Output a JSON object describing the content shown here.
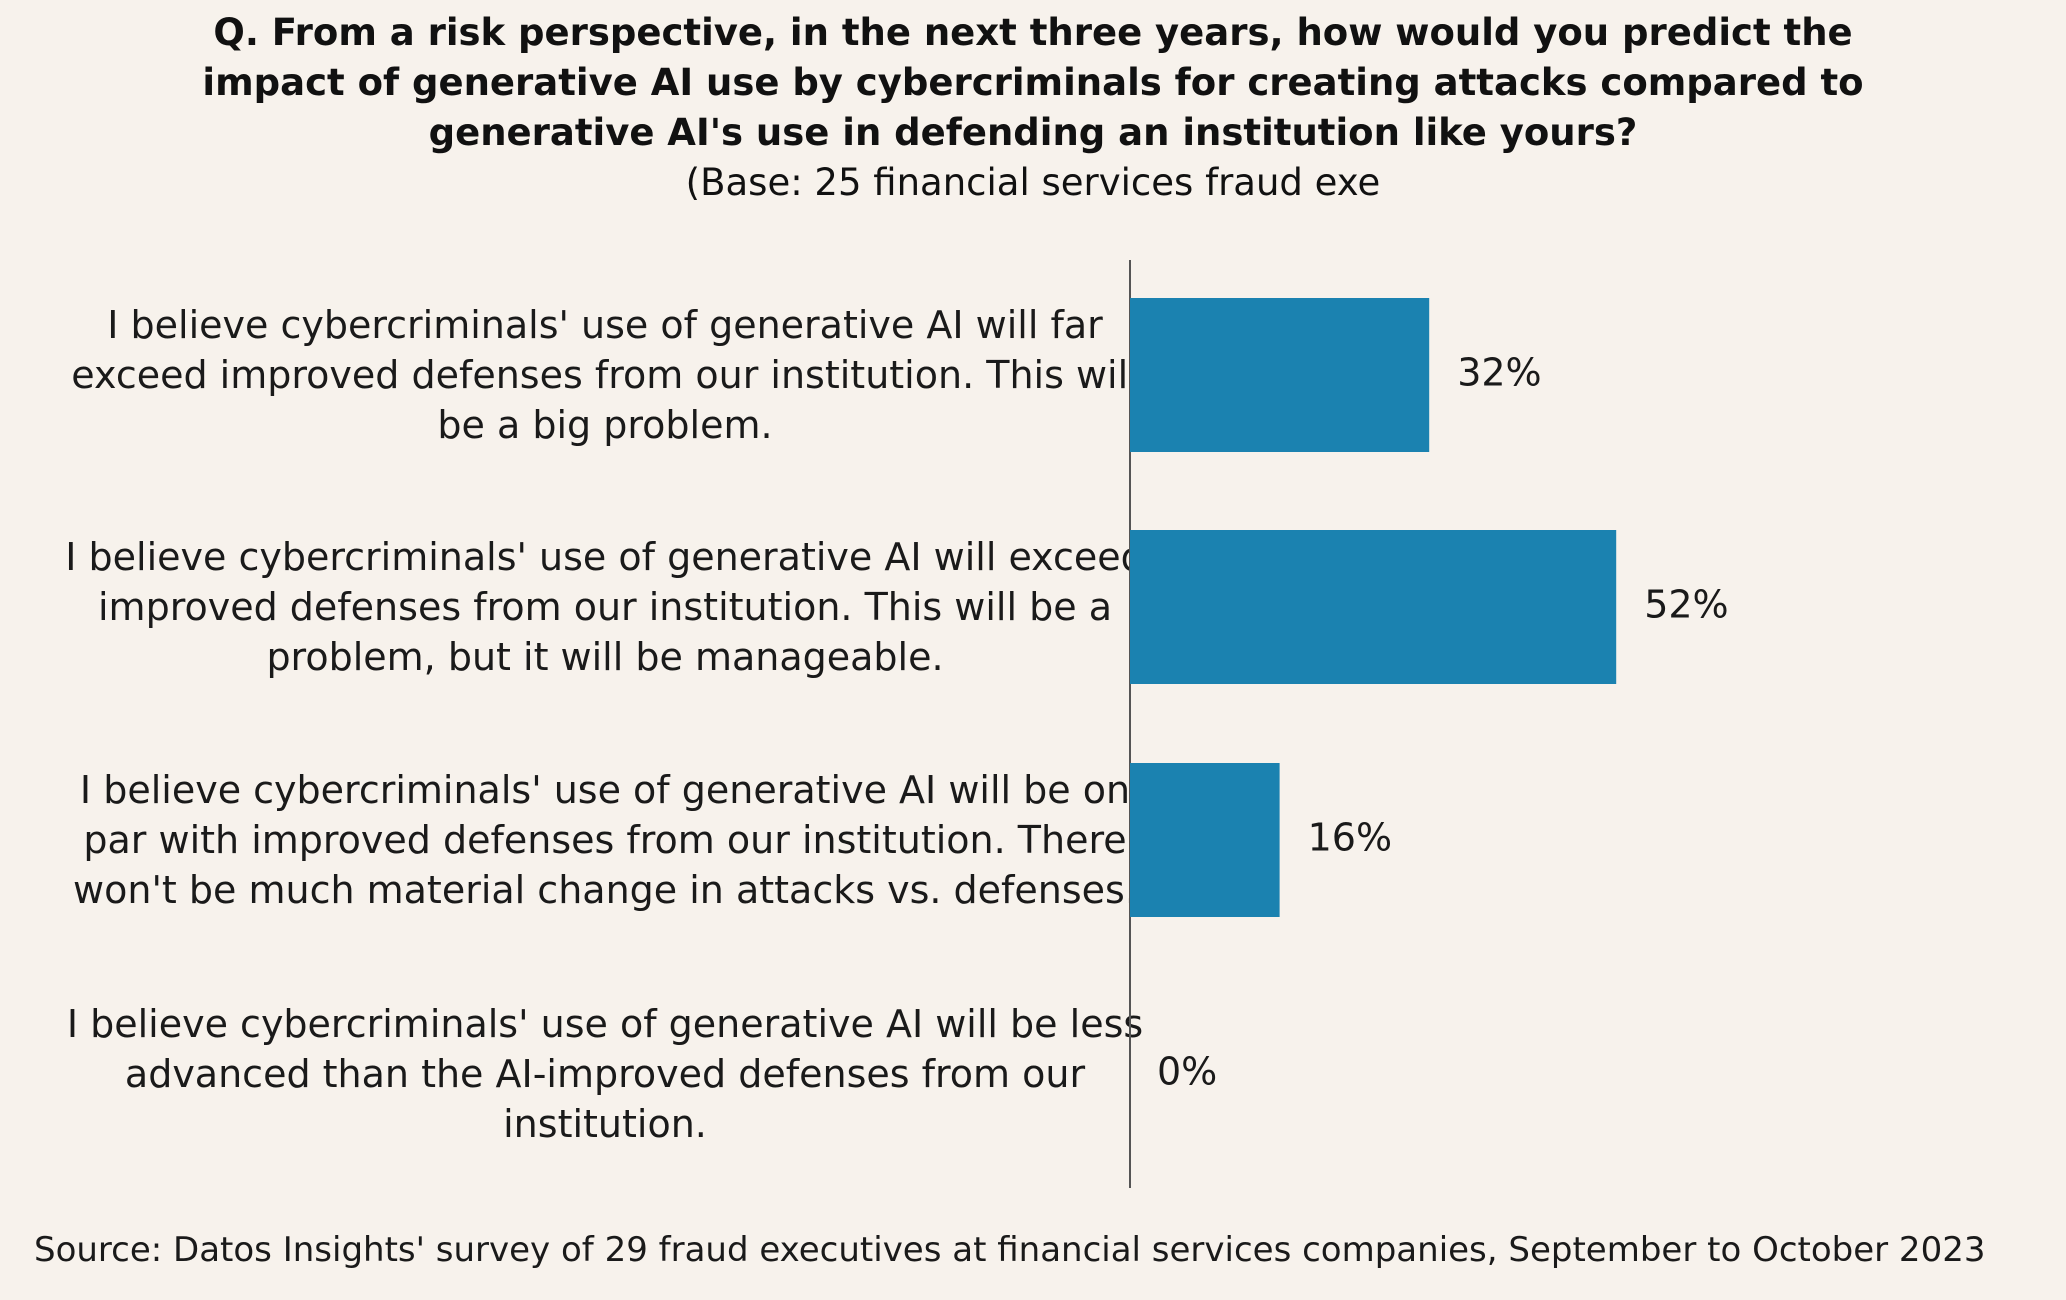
{
  "title": "Q. From a risk perspective, in the next three years, how would you predict the impact of generative AI use by cybercriminals for creating attacks compared to generative AI's use in defending an institution like yours?",
  "subtitle": "(Base: 25 financial services fraud exe",
  "source": "Source: Datos Insights' survey of 29 fraud executives at financial services companies, September to October 2023",
  "colors": {
    "bar": "#1b82b0",
    "axis": "#555555",
    "background": "#f7f2ec"
  },
  "chart_data": {
    "type": "bar",
    "orientation": "horizontal",
    "categories": [
      "I believe cybercriminals' use of generative AI will far exceed improved defenses from our institution. This will be a big problem.",
      "I believe cybercriminals' use of generative AI will exceed improved defenses from our institution. This will be a problem, but it will be manageable.",
      "I believe cybercriminals' use of generative AI will be on par with improved defenses from our institution. There won't be much material change in attacks vs. defenses.",
      "I believe cybercriminals' use of generative AI will be less advanced than the AI-improved defenses from our institution."
    ],
    "values": [
      32,
      52,
      16,
      0
    ],
    "data_labels": [
      "32%",
      "52%",
      "16%",
      "0%"
    ],
    "unit": "%",
    "xlim": [
      0,
      100
    ],
    "grid": false,
    "legend": "none"
  }
}
